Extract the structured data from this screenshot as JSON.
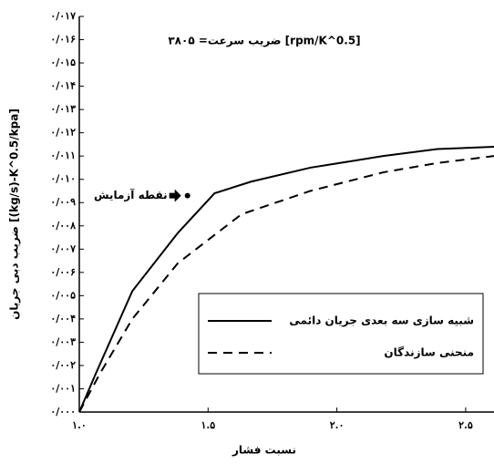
{
  "chart_data": {
    "type": "line",
    "title": "ضریب سرعت= ۳۸۰۵ [rpm/K^0.5]",
    "x_label": "نسبت فشار",
    "y_label": "ضریب دبی جریان [(kg/s)-K^0.5/kpa]",
    "xlim": [
      1.0,
      2.61
    ],
    "ylim": [
      0,
      0.017
    ],
    "xticks": [
      {
        "value": 1.0,
        "label": "۱.۰"
      },
      {
        "value": 1.5,
        "label": "۱.۵"
      },
      {
        "value": 2.0,
        "label": "۲.۰"
      },
      {
        "value": 2.5,
        "label": "۲.۵"
      }
    ],
    "yticks": [
      {
        "value": 0,
        "label": "۰/۰۰۰"
      },
      {
        "value": 0.001,
        "label": "۰/۰۰۱"
      },
      {
        "value": 0.002,
        "label": "۰/۰۰۲"
      },
      {
        "value": 0.003,
        "label": "۰/۰۰۳"
      },
      {
        "value": 0.004,
        "label": "۰/۰۰۴"
      },
      {
        "value": 0.005,
        "label": "۰/۰۰۵"
      },
      {
        "value": 0.006,
        "label": "۰/۰۰۶"
      },
      {
        "value": 0.007,
        "label": "۰/۰۰۷"
      },
      {
        "value": 0.008,
        "label": "۰/۰۰۸"
      },
      {
        "value": 0.009,
        "label": "۰/۰۰۹"
      },
      {
        "value": 0.01,
        "label": "۰/۰۱۰"
      },
      {
        "value": 0.011,
        "label": "۰/۰۱۱"
      },
      {
        "value": 0.012,
        "label": "۰/۰۱۲"
      },
      {
        "value": 0.013,
        "label": "۰/۰۱۳"
      },
      {
        "value": 0.014,
        "label": "۰/۰۱۴"
      },
      {
        "value": 0.015,
        "label": "۰/۰۱۵"
      },
      {
        "value": 0.016,
        "label": "۰/۰۱۶"
      },
      {
        "value": 0.017,
        "label": "۰/۰۱۷"
      }
    ],
    "series": [
      {
        "name": "شبیه سازی سه بعدی جریان دائمی",
        "color": "#000000",
        "dash": "none",
        "x": [
          1.0,
          1.064,
          1.206,
          1.383,
          1.525,
          1.667,
          1.897,
          2.18,
          2.39,
          2.61
        ],
        "values": [
          0.0,
          0.00165,
          0.0052,
          0.0077,
          0.0094,
          0.0099,
          0.0105,
          0.011,
          0.0113,
          0.0114
        ]
      },
      {
        "name": "منحنی سازندگان",
        "color": "#000000",
        "dash": "10,7",
        "x": [
          1.0,
          1.08,
          1.206,
          1.383,
          1.63,
          1.897,
          2.18,
          2.39,
          2.61
        ],
        "values": [
          0.0,
          0.00165,
          0.004,
          0.0064,
          0.0085,
          0.0095,
          0.0103,
          0.0107,
          0.011
        ]
      }
    ],
    "test_point": {
      "label": "نقطه آزمایش",
      "x": 1.42,
      "y": 0.0093
    }
  }
}
